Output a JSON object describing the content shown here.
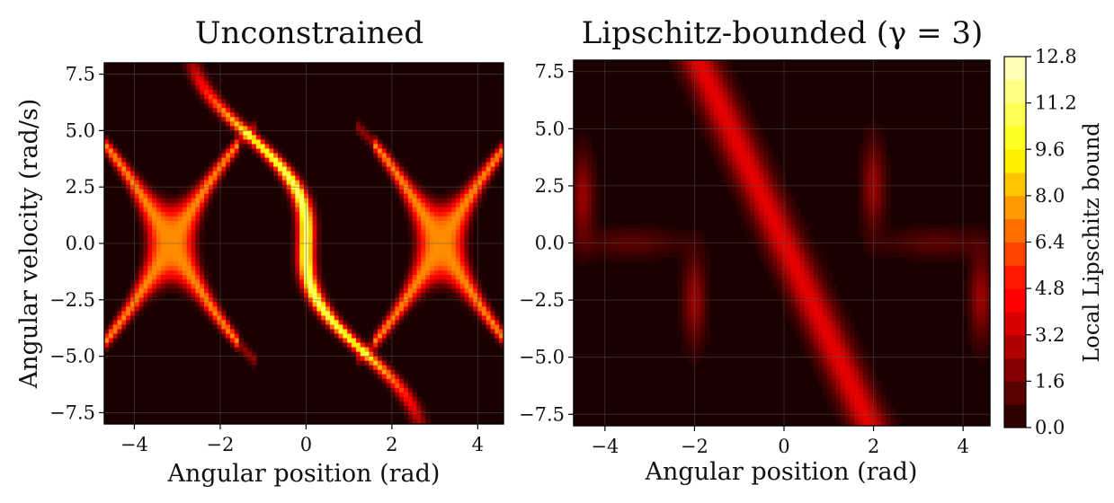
{
  "chart_data": [
    {
      "type": "heatmap",
      "title": "Unconstrained",
      "xlabel": "Angular position (rad)",
      "ylabel": "Angular velocity (rad/s)",
      "xlim": [
        -4.7,
        4.6
      ],
      "ylim": [
        -8.0,
        8.0
      ],
      "xticks": [
        -4,
        -2,
        0,
        2,
        4
      ],
      "xtick_labels": [
        "−4",
        "−2",
        "0",
        "2",
        "4"
      ],
      "yticks": [
        7.5,
        5.0,
        2.5,
        0.0,
        -2.5,
        -5.0,
        -7.5
      ],
      "ytick_labels": [
        "7.5",
        "5.0",
        "2.5",
        "0.0",
        "−2.5",
        "−5.0",
        "−7.5"
      ],
      "grid": true,
      "colormap": "hot",
      "value_range": [
        0.0,
        12.8
      ],
      "description_features": {
        "main_ridge": "S-shaped curve through origin from (-1.5,4.0) to (1.5,-4.0), peak about 12 near (0.5,-1.5)",
        "separatrix_loops": "loop shapes on left and right edges, values 4-8"
      }
    },
    {
      "type": "heatmap",
      "title": "Lipschitz-bounded (γ = 3)",
      "xlabel": "Angular position (rad)",
      "ylabel": "",
      "xlim": [
        -4.7,
        4.6
      ],
      "ylim": [
        -8.0,
        8.0
      ],
      "xticks": [
        -4,
        -2,
        0,
        2,
        4
      ],
      "xtick_labels": [
        "−4",
        "−2",
        "0",
        "2",
        "4"
      ],
      "yticks": [
        7.5,
        5.0,
        2.5,
        0.0,
        -2.5,
        -5.0,
        -7.5
      ],
      "ytick_labels": [
        "7.5",
        "5.0",
        "2.5",
        "0.0",
        "−2.5",
        "−5.0",
        "−7.5"
      ],
      "grid": true,
      "colormap": "hot",
      "value_range": [
        0.0,
        12.8
      ],
      "description_features": {
        "main_band": "diagonal band from (-1.8,7.5) to (1.8,-7.5), values about 3-5",
        "vertical_lobes": "lobes at x = -4.5, -2, 2, 4.5 with values about 2-3"
      }
    }
  ],
  "colorbar": {
    "label": "Local Lipschitz bound",
    "ticks": [
      "12.8",
      "11.2",
      "9.6",
      "8.0",
      "6.4",
      "4.8",
      "3.2",
      "1.6",
      "0.0"
    ],
    "tick_values": [
      12.8,
      11.2,
      9.6,
      8.0,
      6.4,
      4.8,
      3.2,
      1.6,
      0.0
    ],
    "levels": 16,
    "min": 0.0,
    "max": 12.8
  },
  "colors": {
    "background": "#ffffff",
    "heatmap_low": "#1a0000",
    "heatmap_high": "#fffdd0",
    "grid": "#555555"
  }
}
